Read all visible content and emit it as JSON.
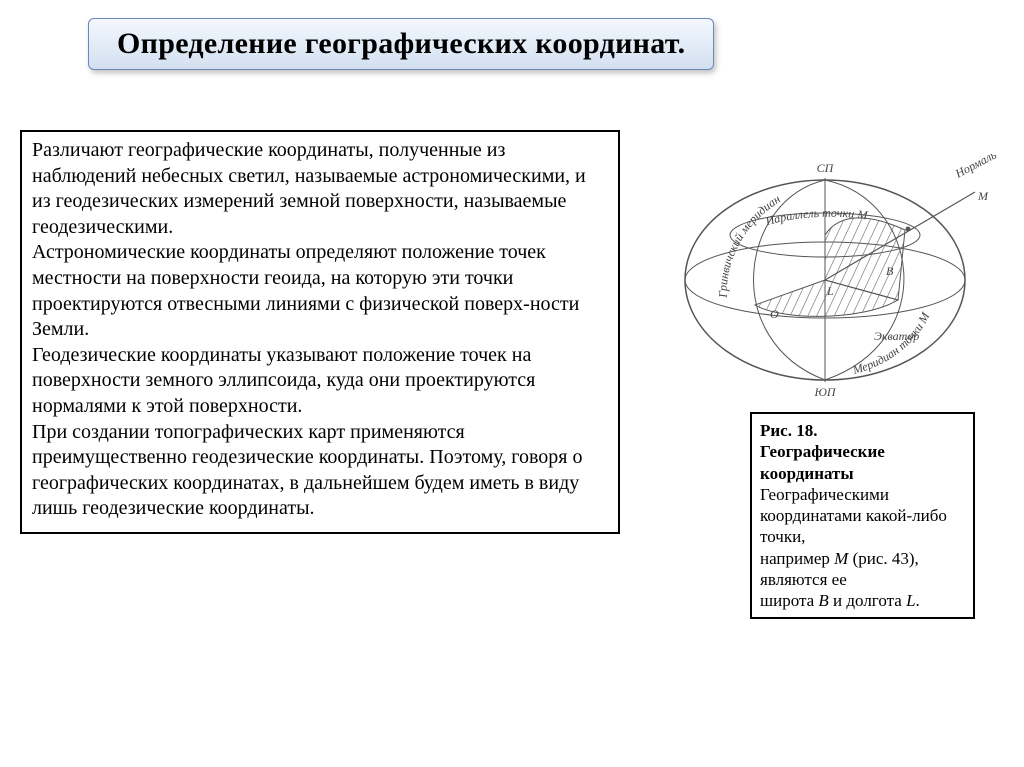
{
  "title": "Определение географических координат",
  "title_period": ".",
  "body_text": "Различают географические координаты, полученные из наблюдений небесных светил, называемые астрономическими, и из геодезических измерений земной поверхности, называемые геодезическими.\nАстрономические координаты определяют положение точек местности на поверхности геоида, на которую эти точки проектируются отвесными линиями с физической поверх-ности Земли.\nГеодезические координаты указывают положение точек на поверхности земного эллипсоида, куда они проектируются нормалями к этой поверхности.\nПри создании топографических карт применяются преимущественно геодезические координаты. Поэтому, говоря о географических координатах, в дальнейшем будем иметь в виду лишь геодезические координаты.",
  "caption": {
    "fig_label": "Рис. 18.",
    "fig_title": "Географические координаты",
    "line1": "Географическими координатами какой-либо точки,",
    "line2_pre": "например ",
    "point_name": "M",
    "line2_paren": " (рис. 43),",
    "line3": "являются ее",
    "line4_pre": "широта ",
    "lat_sym": "B",
    "line4_mid": " и долгота ",
    "lon_sym": "L",
    "line4_end": "."
  },
  "diagram": {
    "stroke": "#555555",
    "hatch": "#555555",
    "bg": "#ffffff",
    "labels": {
      "north": "СП",
      "south": "ЮП",
      "equator": "Экватор",
      "normal": "Нормаль",
      "greenwich": "Гринвичский меридиан",
      "meridian_m": "Меридиан точки M",
      "parallel_m": "Параллель точки M",
      "L": "L",
      "B": "B",
      "O": "O",
      "M": "M"
    }
  },
  "colors": {
    "title_bg_top": "#f4f8fd",
    "title_bg_bot": "#d3e0f0",
    "title_border": "#6a88b8",
    "box_border": "#000000",
    "text": "#000000"
  }
}
